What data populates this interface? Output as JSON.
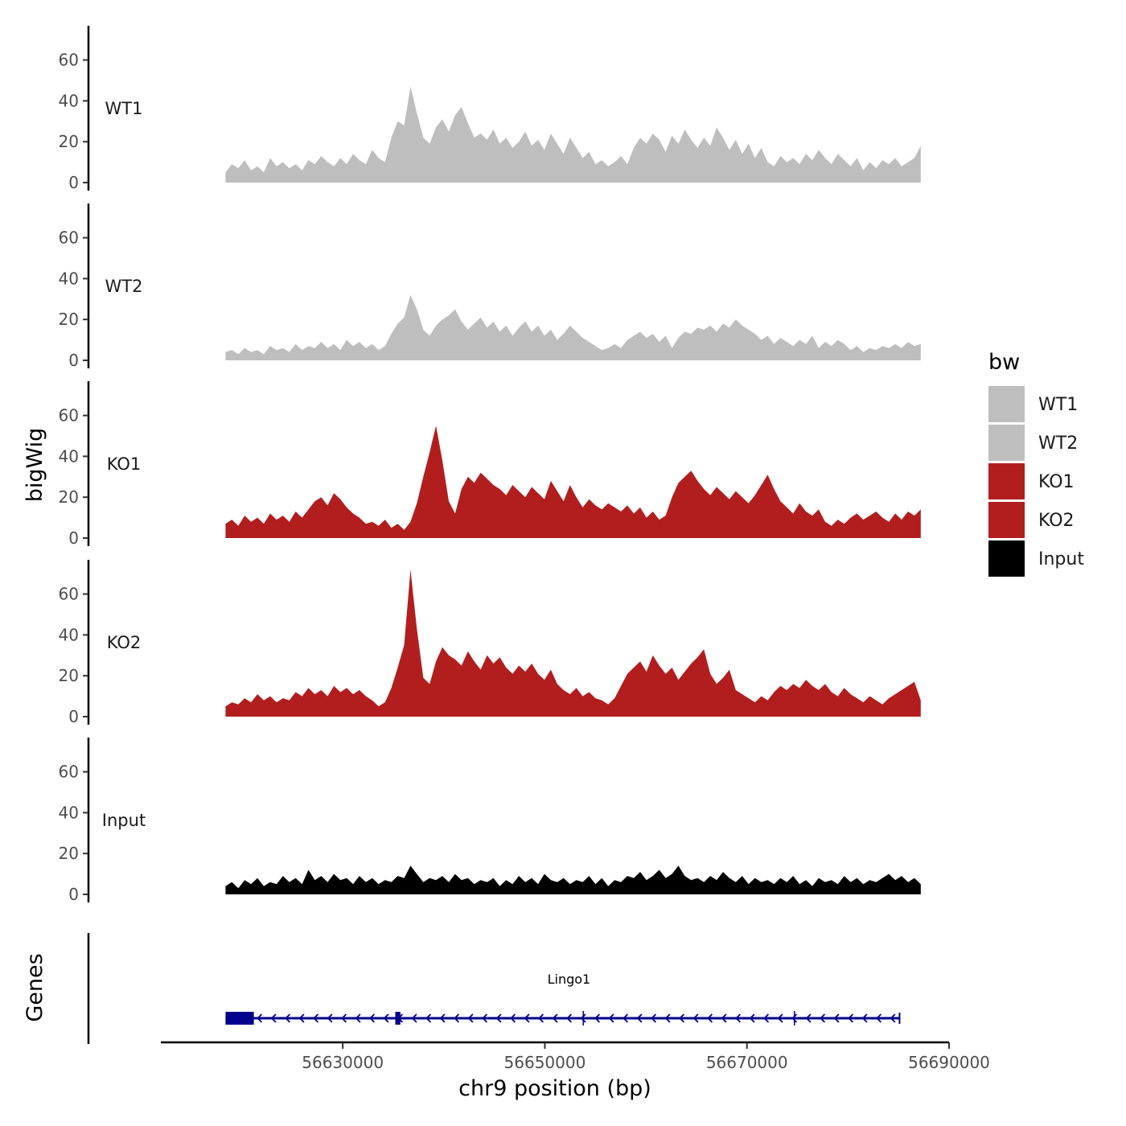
{
  "chart_data": {
    "type": "area",
    "y_axis_title": "bigWig",
    "x_axis_title": "chr9 position (bp)",
    "genes_axis_title": "Genes",
    "xlim": [
      56612000,
      56690000
    ],
    "data_range": [
      56618400,
      56687200
    ],
    "ylim": [
      0,
      76
    ],
    "y_ticks": [
      0,
      20,
      40,
      60
    ],
    "y_tick_labels": [
      "0",
      "20",
      "40",
      "60"
    ],
    "x_ticks": [
      56630000,
      56650000,
      56670000,
      56690000
    ],
    "x_tick_labels": [
      "56630000",
      "56650000",
      "56670000",
      "56690000"
    ],
    "series": [
      {
        "name": "WT1",
        "color": "#bebebe",
        "values": [
          5,
          9,
          7,
          11,
          6,
          8,
          5,
          12,
          8,
          10,
          7,
          9,
          6,
          11,
          9,
          13,
          10,
          8,
          12,
          9,
          14,
          11,
          9,
          16,
          12,
          10,
          22,
          30,
          28,
          47,
          34,
          22,
          19,
          27,
          31,
          25,
          33,
          37,
          29,
          22,
          24,
          21,
          26,
          19,
          22,
          17,
          20,
          25,
          18,
          21,
          16,
          24,
          19,
          14,
          22,
          17,
          12,
          15,
          9,
          11,
          8,
          10,
          13,
          9,
          17,
          22,
          19,
          24,
          21,
          15,
          23,
          19,
          26,
          21,
          17,
          22,
          18,
          27,
          22,
          16,
          21,
          14,
          19,
          12,
          17,
          10,
          8,
          13,
          10,
          12,
          9,
          14,
          11,
          16,
          12,
          9,
          14,
          11,
          8,
          12,
          6,
          10,
          7,
          11,
          9,
          12,
          8,
          10,
          12,
          18
        ]
      },
      {
        "name": "WT2",
        "color": "#bebebe",
        "values": [
          4,
          5,
          3,
          6,
          4,
          5,
          3,
          7,
          5,
          6,
          4,
          8,
          5,
          7,
          6,
          9,
          6,
          8,
          5,
          10,
          7,
          9,
          6,
          8,
          5,
          7,
          13,
          18,
          21,
          32,
          25,
          15,
          12,
          17,
          20,
          22,
          25,
          19,
          15,
          18,
          21,
          16,
          19,
          14,
          17,
          12,
          16,
          19,
          14,
          17,
          12,
          15,
          10,
          13,
          17,
          14,
          11,
          9,
          7,
          5,
          6,
          8,
          6,
          10,
          12,
          14,
          11,
          13,
          9,
          12,
          6,
          11,
          14,
          13,
          16,
          15,
          17,
          14,
          18,
          16,
          20,
          17,
          15,
          13,
          10,
          12,
          8,
          11,
          9,
          7,
          10,
          8,
          12,
          6,
          9,
          7,
          10,
          8,
          5,
          7,
          4,
          6,
          5,
          7,
          6,
          8,
          6,
          9,
          7,
          8
        ]
      },
      {
        "name": "KO1",
        "color": "#b21e1e",
        "values": [
          7,
          9,
          6,
          11,
          8,
          10,
          7,
          12,
          9,
          11,
          8,
          13,
          10,
          14,
          18,
          20,
          16,
          22,
          19,
          15,
          12,
          10,
          7,
          8,
          6,
          9,
          5,
          7,
          4,
          8,
          17,
          30,
          42,
          55,
          38,
          18,
          12,
          24,
          30,
          27,
          32,
          29,
          26,
          24,
          21,
          26,
          23,
          20,
          25,
          22,
          19,
          28,
          23,
          18,
          26,
          20,
          15,
          19,
          16,
          14,
          17,
          15,
          13,
          16,
          12,
          15,
          10,
          13,
          9,
          11,
          20,
          27,
          30,
          33,
          28,
          24,
          21,
          25,
          22,
          19,
          23,
          20,
          17,
          21,
          26,
          31,
          24,
          18,
          15,
          12,
          17,
          13,
          11,
          14,
          8,
          6,
          9,
          7,
          10,
          12,
          9,
          11,
          13,
          10,
          8,
          12,
          9,
          13,
          11,
          14
        ]
      },
      {
        "name": "KO2",
        "color": "#b21e1e",
        "values": [
          5,
          7,
          6,
          9,
          7,
          11,
          8,
          10,
          7,
          9,
          8,
          12,
          10,
          14,
          11,
          13,
          10,
          15,
          12,
          14,
          11,
          13,
          10,
          8,
          5,
          7,
          14,
          24,
          35,
          72,
          43,
          19,
          16,
          27,
          34,
          30,
          28,
          25,
          32,
          27,
          23,
          30,
          26,
          29,
          24,
          21,
          25,
          22,
          26,
          21,
          18,
          23,
          16,
          13,
          11,
          14,
          10,
          12,
          9,
          8,
          6,
          9,
          15,
          21,
          24,
          27,
          22,
          30,
          25,
          21,
          24,
          18,
          22,
          26,
          29,
          33,
          21,
          16,
          19,
          23,
          13,
          11,
          9,
          7,
          10,
          8,
          12,
          15,
          13,
          16,
          14,
          18,
          15,
          13,
          16,
          12,
          10,
          14,
          11,
          9,
          7,
          10,
          8,
          6,
          9,
          11,
          13,
          15,
          17,
          8
        ]
      },
      {
        "name": "Input",
        "color": "#000000",
        "values": [
          4,
          6,
          3,
          7,
          5,
          8,
          4,
          6,
          5,
          9,
          6,
          8,
          5,
          12,
          7,
          9,
          6,
          10,
          7,
          8,
          5,
          9,
          6,
          8,
          5,
          7,
          6,
          9,
          8,
          14,
          10,
          6,
          8,
          7,
          9,
          6,
          10,
          7,
          8,
          5,
          7,
          6,
          8,
          4,
          7,
          5,
          9,
          6,
          8,
          5,
          10,
          7,
          6,
          8,
          5,
          7,
          6,
          9,
          5,
          8,
          4,
          7,
          6,
          9,
          8,
          11,
          7,
          9,
          12,
          8,
          10,
          14,
          9,
          7,
          8,
          6,
          9,
          7,
          11,
          8,
          6,
          9,
          5,
          8,
          6,
          7,
          5,
          8,
          6,
          9,
          5,
          7,
          4,
          8,
          6,
          7,
          5,
          9,
          6,
          8,
          5,
          7,
          6,
          8,
          10,
          7,
          9,
          6,
          8,
          5
        ]
      }
    ],
    "legend": {
      "title": "bw",
      "placement": "right",
      "entries": [
        {
          "label": "WT1",
          "color": "#bebebe"
        },
        {
          "label": "WT2",
          "color": "#bebebe"
        },
        {
          "label": "KO1",
          "color": "#b21e1e"
        },
        {
          "label": "KO2",
          "color": "#b21e1e"
        },
        {
          "label": "Input",
          "color": "#000000"
        }
      ]
    },
    "genes": [
      {
        "name": "Lingo1",
        "strand": "-",
        "start": 56618400,
        "end": 56685100,
        "color": "#00008b",
        "exons": [
          [
            56618400,
            56621200
          ],
          [
            56635200,
            56635700
          ]
        ],
        "boundaries": [
          56653800,
          56674700
        ]
      }
    ]
  }
}
